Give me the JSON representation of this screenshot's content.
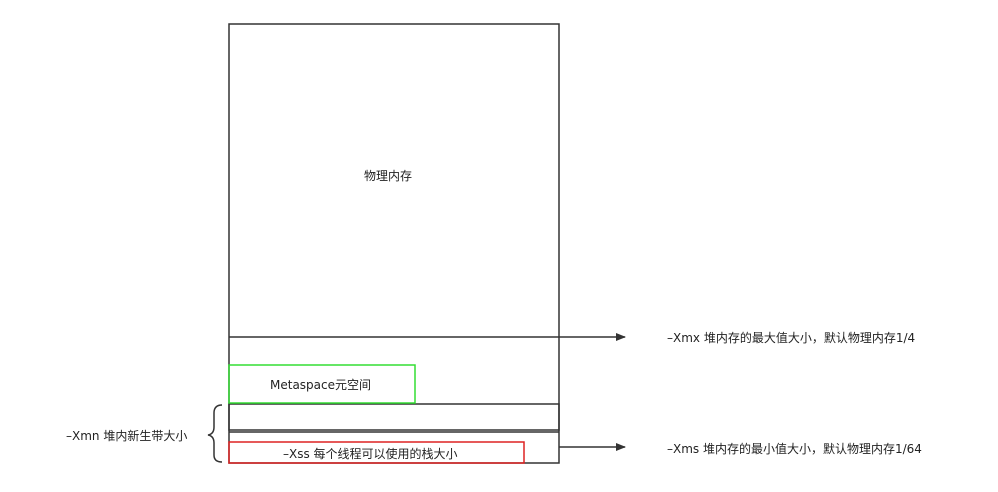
{
  "memory_diagram": {
    "physical_memory_label": "物理内存",
    "metaspace_label": "Metaspace元空间",
    "xss_label": "–Xss 每个线程可以使用的栈大小",
    "xmn_label": "–Xmn 堆内新生带大小",
    "xmx_label": "–Xmx 堆内存的最大值大小，默认物理内存1/4",
    "xms_label": "–Xms 堆内存的最小值大小，默认物理内存1/64"
  },
  "colors": {
    "outline": "#333333",
    "metaspace_border": "#33dd33",
    "xss_border": "#dd2222",
    "arrow": "#333333"
  }
}
